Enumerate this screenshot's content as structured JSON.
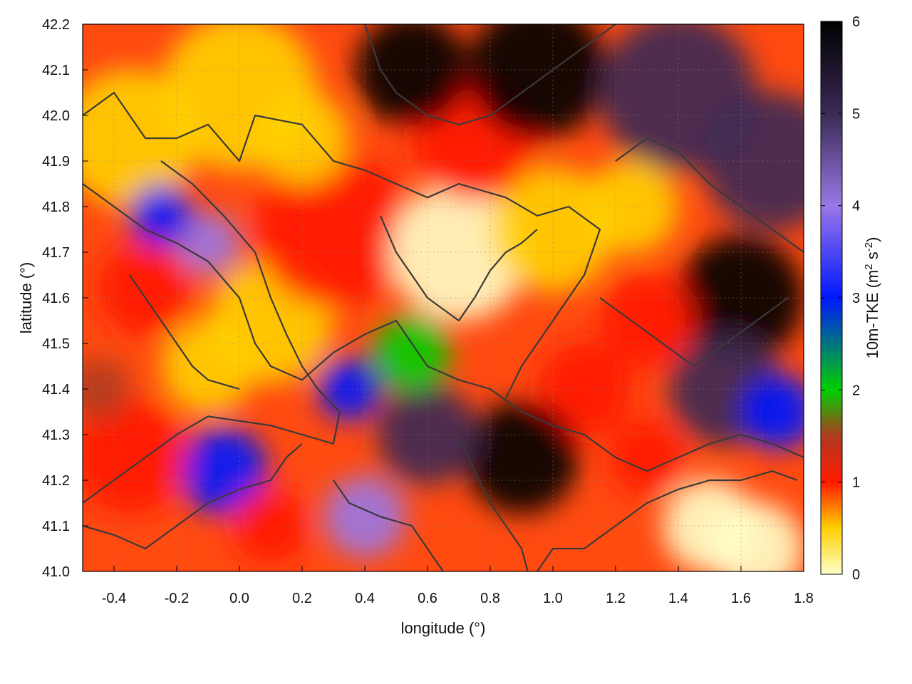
{
  "chart_data": {
    "type": "heatmap",
    "title": "",
    "xlabel": "longitude (°)",
    "ylabel": "latitude (°)",
    "xlim": [
      -0.5,
      1.8
    ],
    "ylim": [
      41.0,
      42.2
    ],
    "x_ticks": [
      -0.4,
      -0.2,
      0.0,
      0.2,
      0.4,
      0.6,
      0.8,
      1.0,
      1.2,
      1.4,
      1.6,
      1.8
    ],
    "x_tick_labels": [
      "-0.4",
      "-0.2",
      "0.0",
      "0.2",
      "0.4",
      "0.6",
      "0.8",
      "1.0",
      "1.2",
      "1.4",
      "1.6",
      "1.8"
    ],
    "y_ticks": [
      41.0,
      41.1,
      41.2,
      41.3,
      41.4,
      41.5,
      41.6,
      41.7,
      41.8,
      41.9,
      42.0,
      42.1,
      42.2
    ],
    "y_tick_labels": [
      "41.0",
      "41.1",
      "41.2",
      "41.3",
      "41.4",
      "41.5",
      "41.6",
      "41.7",
      "41.8",
      "41.9",
      "42.0",
      "42.1",
      "42.2"
    ],
    "colorbar": {
      "label_main": "10m-TKE (m",
      "label_sup1": "2",
      "label_mid": " s",
      "label_sup2": "-2",
      "label_end": ")",
      "range": [
        0,
        6
      ],
      "ticks": [
        0,
        1,
        2,
        3,
        4,
        5,
        6
      ],
      "tick_labels": [
        "0",
        "1",
        "2",
        "3",
        "4",
        "5",
        "6"
      ],
      "stops": [
        {
          "value": 0.0,
          "color": "#ffffc8"
        },
        {
          "value": 0.5,
          "color": "#ffd000"
        },
        {
          "value": 1.0,
          "color": "#ff1a00"
        },
        {
          "value": 1.5,
          "color": "#b03a20"
        },
        {
          "value": 2.0,
          "color": "#00d000"
        },
        {
          "value": 3.0,
          "color": "#0018ff"
        },
        {
          "value": 4.0,
          "color": "#9a78e6"
        },
        {
          "value": 5.0,
          "color": "#3a2a55"
        },
        {
          "value": 6.0,
          "color": "#000000"
        }
      ]
    },
    "grid": true,
    "contour_color": "#3a3a3a",
    "field_regions": [
      {
        "lon": -0.35,
        "lat": 41.95,
        "tke": 0.6,
        "radius": 0.22
      },
      {
        "lon": 0.0,
        "lat": 42.05,
        "tke": 0.4,
        "radius": 0.25
      },
      {
        "lon": 0.1,
        "lat": 41.55,
        "tke": 0.3,
        "radius": 0.2
      },
      {
        "lon": -0.1,
        "lat": 41.45,
        "tke": 0.5,
        "radius": 0.15
      },
      {
        "lon": 0.3,
        "lat": 41.75,
        "tke": 0.9,
        "radius": 0.25
      },
      {
        "lon": 0.7,
        "lat": 41.7,
        "tke": 0.2,
        "radius": 0.22
      },
      {
        "lon": 1.0,
        "lat": 41.75,
        "tke": 0.3,
        "radius": 0.2
      },
      {
        "lon": 0.75,
        "lat": 41.95,
        "tke": 1.0,
        "radius": 0.2
      },
      {
        "lon": 0.55,
        "lat": 42.1,
        "tke": 5.5,
        "radius": 0.18
      },
      {
        "lon": 0.95,
        "lat": 42.1,
        "tke": 5.8,
        "radius": 0.22
      },
      {
        "lon": 1.4,
        "lat": 42.05,
        "tke": 4.8,
        "radius": 0.25
      },
      {
        "lon": 1.7,
        "lat": 41.9,
        "tke": 4.5,
        "radius": 0.22
      },
      {
        "lon": 1.25,
        "lat": 41.8,
        "tke": 0.4,
        "radius": 0.15
      },
      {
        "lon": 1.6,
        "lat": 41.6,
        "tke": 5.5,
        "radius": 0.2
      },
      {
        "lon": 1.55,
        "lat": 41.4,
        "tke": 5.0,
        "radius": 0.18
      },
      {
        "lon": 1.72,
        "lat": 41.35,
        "tke": 2.8,
        "radius": 0.12
      },
      {
        "lon": 1.3,
        "lat": 41.55,
        "tke": 1.1,
        "radius": 0.15
      },
      {
        "lon": 1.1,
        "lat": 41.4,
        "tke": 1.0,
        "radius": 0.15
      },
      {
        "lon": 0.9,
        "lat": 41.25,
        "tke": 5.8,
        "radius": 0.18
      },
      {
        "lon": 0.6,
        "lat": 41.3,
        "tke": 4.6,
        "radius": 0.16
      },
      {
        "lon": 0.4,
        "lat": 41.12,
        "tke": 4.3,
        "radius": 0.13
      },
      {
        "lon": 0.35,
        "lat": 41.4,
        "tke": 3.2,
        "radius": 0.1
      },
      {
        "lon": -0.05,
        "lat": 41.22,
        "tke": 3.0,
        "radius": 0.14
      },
      {
        "lon": -0.35,
        "lat": 41.25,
        "tke": 1.2,
        "radius": 0.18
      },
      {
        "lon": -0.3,
        "lat": 41.62,
        "tke": 1.1,
        "radius": 0.15
      },
      {
        "lon": -0.1,
        "lat": 41.72,
        "tke": 3.8,
        "radius": 0.1
      },
      {
        "lon": -0.25,
        "lat": 41.78,
        "tke": 2.6,
        "radius": 0.1
      },
      {
        "lon": 0.55,
        "lat": 41.48,
        "tke": 2.2,
        "radius": 0.12
      },
      {
        "lon": 1.5,
        "lat": 41.1,
        "tke": 0.2,
        "radius": 0.15
      },
      {
        "lon": 1.65,
        "lat": 41.05,
        "tke": 0.0,
        "radius": 0.15
      },
      {
        "lon": 1.3,
        "lat": 41.25,
        "tke": 1.0,
        "radius": 0.12
      },
      {
        "lon": 0.2,
        "lat": 41.95,
        "tke": 0.5,
        "radius": 0.15
      },
      {
        "lon": -0.45,
        "lat": 41.4,
        "tke": 1.3,
        "radius": 0.1
      },
      {
        "lon": 0.1,
        "lat": 41.1,
        "tke": 1.0,
        "radius": 0.12
      }
    ],
    "contours": [
      [
        [
          -0.5,
          42.0
        ],
        [
          -0.4,
          42.05
        ],
        [
          -0.3,
          41.95
        ],
        [
          -0.2,
          41.95
        ],
        [
          -0.1,
          41.98
        ],
        [
          0.0,
          41.9
        ],
        [
          0.05,
          42.0
        ],
        [
          0.2,
          41.98
        ],
        [
          0.3,
          41.9
        ],
        [
          0.4,
          41.88
        ],
        [
          0.5,
          41.85
        ],
        [
          0.6,
          41.82
        ],
        [
          0.7,
          41.85
        ],
        [
          0.85,
          41.82
        ],
        [
          0.95,
          41.78
        ],
        [
          1.05,
          41.8
        ],
        [
          1.15,
          41.75
        ],
        [
          1.1,
          41.65
        ],
        [
          1.0,
          41.55
        ],
        [
          0.9,
          41.45
        ],
        [
          0.85,
          41.38
        ]
      ],
      [
        [
          -0.25,
          41.9
        ],
        [
          -0.15,
          41.85
        ],
        [
          -0.05,
          41.78
        ],
        [
          0.05,
          41.7
        ],
        [
          0.1,
          41.6
        ],
        [
          0.15,
          41.52
        ],
        [
          0.2,
          41.45
        ],
        [
          0.25,
          41.4
        ],
        [
          0.32,
          41.35
        ],
        [
          0.3,
          41.28
        ],
        [
          0.2,
          41.3
        ],
        [
          0.1,
          41.32
        ],
        [
          0.0,
          41.33
        ],
        [
          -0.1,
          41.34
        ],
        [
          -0.2,
          41.3
        ],
        [
          -0.3,
          41.25
        ],
        [
          -0.4,
          41.2
        ],
        [
          -0.5,
          41.15
        ]
      ],
      [
        [
          0.45,
          41.78
        ],
        [
          0.5,
          41.7
        ],
        [
          0.55,
          41.65
        ],
        [
          0.6,
          41.6
        ],
        [
          0.7,
          41.55
        ],
        [
          0.75,
          41.6
        ],
        [
          0.8,
          41.66
        ],
        [
          0.85,
          41.7
        ],
        [
          0.9,
          41.72
        ],
        [
          0.95,
          41.75
        ]
      ],
      [
        [
          -0.5,
          41.85
        ],
        [
          -0.4,
          41.8
        ],
        [
          -0.3,
          41.75
        ],
        [
          -0.2,
          41.72
        ],
        [
          -0.1,
          41.68
        ],
        [
          0.0,
          41.6
        ],
        [
          0.05,
          41.5
        ],
        [
          0.1,
          41.45
        ],
        [
          0.2,
          41.42
        ],
        [
          0.3,
          41.48
        ],
        [
          0.4,
          41.52
        ],
        [
          0.5,
          41.55
        ],
        [
          0.55,
          41.5
        ],
        [
          0.6,
          41.45
        ],
        [
          0.7,
          41.42
        ],
        [
          0.8,
          41.4
        ],
        [
          0.9,
          41.35
        ],
        [
          1.0,
          41.32
        ],
        [
          1.1,
          41.3
        ],
        [
          1.2,
          41.25
        ],
        [
          1.3,
          41.22
        ],
        [
          1.4,
          41.25
        ],
        [
          1.5,
          41.28
        ],
        [
          1.6,
          41.3
        ],
        [
          1.7,
          41.28
        ],
        [
          1.8,
          41.25
        ]
      ],
      [
        [
          0.95,
          41.0
        ],
        [
          1.0,
          41.05
        ],
        [
          1.1,
          41.05
        ],
        [
          1.2,
          41.1
        ],
        [
          1.3,
          41.15
        ],
        [
          1.4,
          41.18
        ],
        [
          1.5,
          41.2
        ],
        [
          1.6,
          41.2
        ],
        [
          1.7,
          41.22
        ],
        [
          1.78,
          41.2
        ]
      ],
      [
        [
          -0.5,
          41.1
        ],
        [
          -0.4,
          41.08
        ],
        [
          -0.3,
          41.05
        ],
        [
          -0.2,
          41.1
        ],
        [
          -0.1,
          41.15
        ],
        [
          0.0,
          41.18
        ],
        [
          0.1,
          41.2
        ],
        [
          0.15,
          41.25
        ],
        [
          0.2,
          41.28
        ]
      ],
      [
        [
          0.3,
          41.2
        ],
        [
          0.35,
          41.15
        ],
        [
          0.45,
          41.12
        ],
        [
          0.55,
          41.1
        ],
        [
          0.6,
          41.05
        ],
        [
          0.65,
          41.0
        ]
      ],
      [
        [
          0.7,
          41.3
        ],
        [
          0.75,
          41.22
        ],
        [
          0.8,
          41.15
        ],
        [
          0.85,
          41.1
        ],
        [
          0.9,
          41.05
        ],
        [
          0.92,
          41.0
        ]
      ],
      [
        [
          1.2,
          41.9
        ],
        [
          1.3,
          41.95
        ],
        [
          1.4,
          41.92
        ],
        [
          1.5,
          41.85
        ],
        [
          1.6,
          41.8
        ],
        [
          1.7,
          41.75
        ],
        [
          1.8,
          41.7
        ]
      ],
      [
        [
          1.15,
          41.6
        ],
        [
          1.25,
          41.55
        ],
        [
          1.35,
          41.5
        ],
        [
          1.45,
          41.45
        ],
        [
          1.55,
          41.5
        ],
        [
          1.65,
          41.55
        ],
        [
          1.75,
          41.6
        ]
      ],
      [
        [
          0.4,
          42.2
        ],
        [
          0.45,
          42.1
        ],
        [
          0.5,
          42.05
        ],
        [
          0.6,
          42.0
        ],
        [
          0.7,
          41.98
        ],
        [
          0.8,
          42.0
        ],
        [
          0.9,
          42.05
        ],
        [
          1.0,
          42.1
        ],
        [
          1.1,
          42.15
        ],
        [
          1.2,
          42.2
        ]
      ],
      [
        [
          -0.35,
          41.65
        ],
        [
          -0.3,
          41.6
        ],
        [
          -0.25,
          41.55
        ],
        [
          -0.2,
          41.5
        ],
        [
          -0.15,
          41.45
        ],
        [
          -0.1,
          41.42
        ],
        [
          0.0,
          41.4
        ]
      ]
    ]
  }
}
